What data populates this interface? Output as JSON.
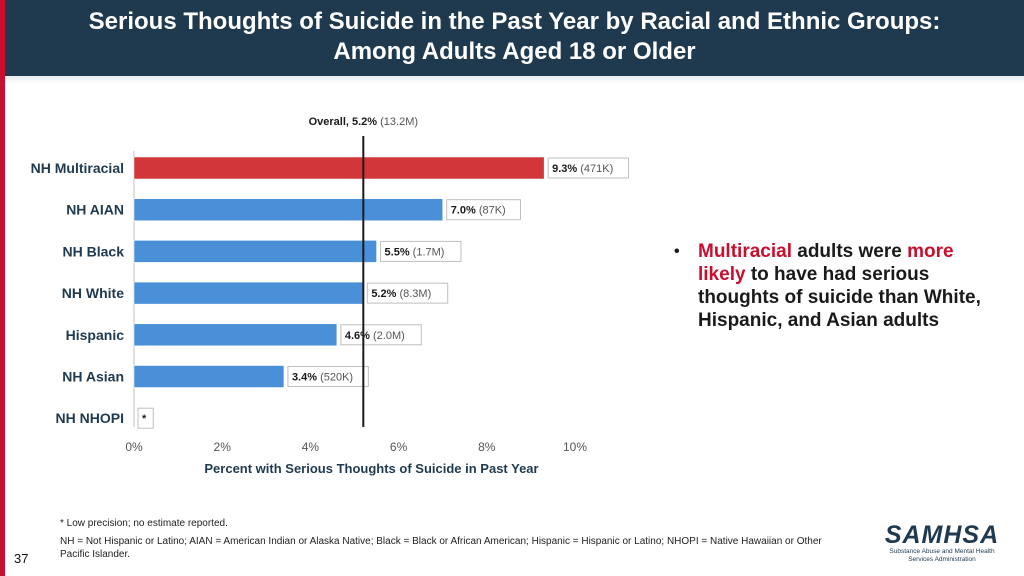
{
  "header": {
    "title_line1": "Serious Thoughts of Suicide in the Past Year by Racial and Ethnic Groups:",
    "title_line2": "Among Adults Aged 18 or Older"
  },
  "chart_data": {
    "type": "bar",
    "orientation": "horizontal",
    "categories": [
      "NH Multiracial",
      "NH AIAN",
      "NH Black",
      "NH White",
      "Hispanic",
      "NH Asian",
      "NH NHOPI"
    ],
    "values": [
      9.3,
      7.0,
      5.5,
      5.2,
      4.6,
      3.4,
      null
    ],
    "value_labels": [
      "9.3%",
      "7.0%",
      "5.5%",
      "5.2%",
      "4.6%",
      "3.4%",
      "*"
    ],
    "count_labels": [
      "(471K)",
      "(87K)",
      "(1.7M)",
      "(8.3M)",
      "(2.0M)",
      "(520K)",
      ""
    ],
    "highlight_index": 0,
    "colors": {
      "default": "#4a90d9",
      "highlight": "#d0363a",
      "reference": "#1a1a1a"
    },
    "reference": {
      "value": 5.2,
      "label_bold": "Overall, 5.2%",
      "label_count": "(13.2M)"
    },
    "xlim": [
      0,
      10
    ],
    "xticks": [
      "0%",
      "2%",
      "4%",
      "6%",
      "8%",
      "10%"
    ],
    "xlabel": "Percent with Serious Thoughts of Suicide in Past Year"
  },
  "bullet": {
    "part1": "Multiracial",
    "part2": " adults were ",
    "part3": "more likely",
    "part4": " to have had serious thoughts of suicide than White, Hispanic, and Asian adults"
  },
  "footnotes": {
    "line1": "* Low precision; no estimate reported.",
    "line2": "NH = Not Hispanic or Latino; AIAN = American Indian or Alaska Native; Black = Black or African American; Hispanic = Hispanic or Latino; NHOPI = Native Hawaiian or Other Pacific Islander."
  },
  "page_number": "37",
  "logo": {
    "mark": "SAMHSA",
    "sub_line1": "Substance Abuse and Mental Health",
    "sub_line2": "Services Administration"
  }
}
